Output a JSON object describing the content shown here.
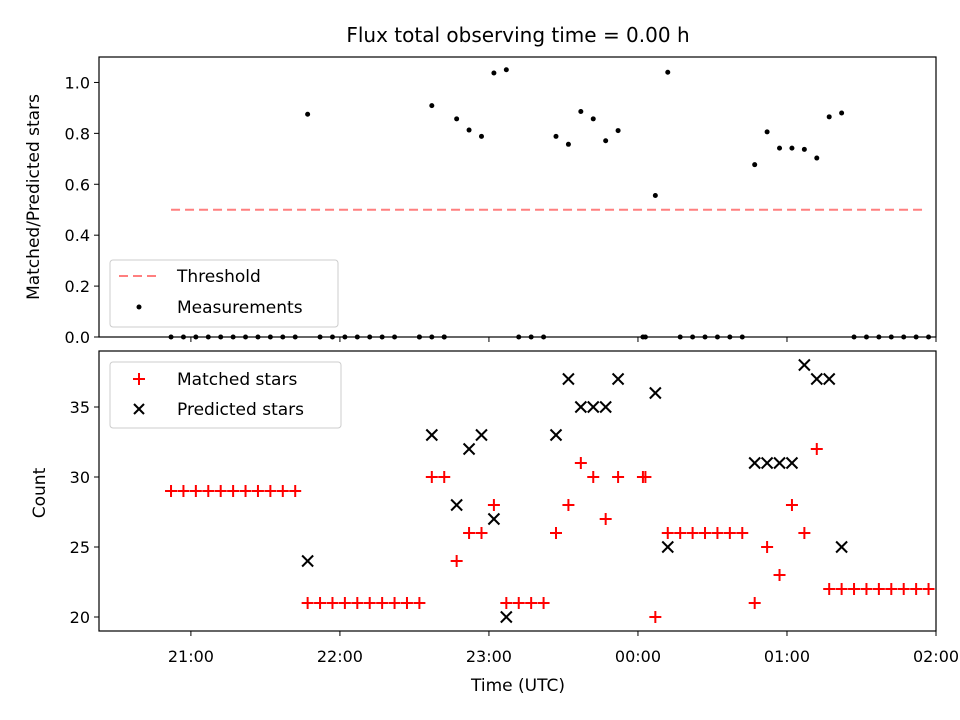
{
  "figure": {
    "title": "Flux total observing time = 0.00 h",
    "xlabel": "Time (UTC)",
    "x_ticks": [
      "21:00",
      "22:00",
      "23:00",
      "00:00",
      "01:00",
      "02:00"
    ]
  },
  "chart_data": [
    {
      "type": "scatter",
      "title": "Flux total observing time = 0.00 h",
      "xlabel": "Time (UTC)",
      "ylabel": "Matched/Predicted stars",
      "x_unit": "minutes after 21:00 UTC",
      "xlim": [
        -37,
        300
      ],
      "ylim": [
        0,
        1.1
      ],
      "y_ticks": [
        0.0,
        0.2,
        0.4,
        0.6,
        0.8,
        1.0
      ],
      "grid": false,
      "legend": {
        "position": "bottom-left",
        "entries": [
          "Threshold",
          "Measurements"
        ]
      },
      "threshold": {
        "name": "Threshold",
        "value": 0.5,
        "x_range": [
          -8,
          296
        ],
        "color": "#ff7f7f",
        "style": "dashed"
      },
      "series": [
        {
          "name": "Measurements",
          "color": "#000000",
          "marker": "dot",
          "points": [
            [
              -8,
              0
            ],
            [
              -3,
              0
            ],
            [
              2,
              0
            ],
            [
              7,
              0
            ],
            [
              12,
              0
            ],
            [
              17,
              0
            ],
            [
              22,
              0
            ],
            [
              27,
              0
            ],
            [
              32,
              0
            ],
            [
              37,
              0
            ],
            [
              42,
              0
            ],
            [
              47,
              0.875
            ],
            [
              52,
              0
            ],
            [
              57,
              0
            ],
            [
              62,
              0
            ],
            [
              67,
              0
            ],
            [
              72,
              0
            ],
            [
              77,
              0
            ],
            [
              82,
              0
            ],
            [
              92,
              0
            ],
            [
              97,
              0
            ],
            [
              102,
              0
            ],
            [
              92,
              0
            ],
            [
              97,
              0.909
            ],
            [
              102,
              0
            ],
            [
              107,
              0.857
            ],
            [
              112,
              0.813
            ],
            [
              117,
              0.788
            ],
            [
              122,
              1.037
            ],
            [
              127,
              1.05
            ],
            [
              132,
              0
            ],
            [
              137,
              0
            ],
            [
              142,
              0
            ],
            [
              147,
              0.788
            ],
            [
              152,
              0.757
            ],
            [
              157,
              0.886
            ],
            [
              162,
              0.857
            ],
            [
              167,
              0.771
            ],
            [
              172,
              0.811
            ],
            [
              182,
              0
            ],
            [
              183,
              0
            ],
            [
              187,
              0.556
            ],
            [
              192,
              1.04
            ],
            [
              197,
              0
            ],
            [
              202,
              0
            ],
            [
              207,
              0
            ],
            [
              212,
              0
            ],
            [
              217,
              0
            ],
            [
              222,
              0
            ],
            [
              227,
              0.677
            ],
            [
              232,
              0.806
            ],
            [
              237,
              0.742
            ],
            [
              242,
              0.742
            ],
            [
              247,
              0.737
            ],
            [
              252,
              0.703
            ],
            [
              257,
              0.865
            ],
            [
              262,
              0.88
            ],
            [
              267,
              0
            ],
            [
              272,
              0
            ],
            [
              277,
              0
            ],
            [
              282,
              0
            ],
            [
              287,
              0
            ],
            [
              292,
              0
            ],
            [
              297,
              0
            ]
          ]
        }
      ]
    },
    {
      "type": "scatter",
      "xlabel": "Time (UTC)",
      "ylabel": "Count",
      "x_unit": "minutes after 21:00 UTC",
      "xlim": [
        -37,
        300
      ],
      "ylim": [
        19,
        39
      ],
      "y_ticks": [
        20,
        25,
        30,
        35
      ],
      "grid": false,
      "legend": {
        "position": "top-left",
        "entries": [
          "Matched stars",
          "Predicted stars"
        ]
      },
      "series": [
        {
          "name": "Matched stars",
          "color": "#ff0000",
          "marker": "plus",
          "points": [
            [
              -8,
              29
            ],
            [
              -3,
              29
            ],
            [
              2,
              29
            ],
            [
              7,
              29
            ],
            [
              12,
              29
            ],
            [
              17,
              29
            ],
            [
              22,
              29
            ],
            [
              27,
              29
            ],
            [
              32,
              29
            ],
            [
              37,
              29
            ],
            [
              42,
              29
            ],
            [
              47,
              21
            ],
            [
              52,
              21
            ],
            [
              57,
              21
            ],
            [
              62,
              21
            ],
            [
              67,
              21
            ],
            [
              72,
              21
            ],
            [
              77,
              21
            ],
            [
              82,
              21
            ],
            [
              87,
              21
            ],
            [
              92,
              21
            ],
            [
              97,
              30
            ],
            [
              102,
              30
            ],
            [
              107,
              24
            ],
            [
              112,
              26
            ],
            [
              117,
              26
            ],
            [
              122,
              28
            ],
            [
              127,
              21
            ],
            [
              132,
              21
            ],
            [
              137,
              21
            ],
            [
              142,
              21
            ],
            [
              147,
              26
            ],
            [
              152,
              28
            ],
            [
              157,
              31
            ],
            [
              162,
              30
            ],
            [
              167,
              27
            ],
            [
              172,
              30
            ],
            [
              182,
              30
            ],
            [
              183,
              30
            ],
            [
              187,
              20
            ],
            [
              192,
              26
            ],
            [
              197,
              26
            ],
            [
              202,
              26
            ],
            [
              207,
              26
            ],
            [
              212,
              26
            ],
            [
              217,
              26
            ],
            [
              222,
              26
            ],
            [
              227,
              21
            ],
            [
              232,
              25
            ],
            [
              237,
              23
            ],
            [
              242,
              28
            ],
            [
              247,
              26
            ],
            [
              252,
              32
            ],
            [
              257,
              22
            ],
            [
              262,
              22
            ],
            [
              267,
              22
            ],
            [
              272,
              22
            ],
            [
              277,
              22
            ],
            [
              282,
              22
            ],
            [
              287,
              22
            ],
            [
              292,
              22
            ],
            [
              297,
              22
            ]
          ]
        },
        {
          "name": "Predicted stars",
          "color": "#000000",
          "marker": "x",
          "points": [
            [
              47,
              24
            ],
            [
              97,
              33
            ],
            [
              107,
              28
            ],
            [
              112,
              32
            ],
            [
              117,
              33
            ],
            [
              122,
              27
            ],
            [
              127,
              20
            ],
            [
              147,
              33
            ],
            [
              152,
              37
            ],
            [
              157,
              35
            ],
            [
              162,
              35
            ],
            [
              167,
              35
            ],
            [
              172,
              37
            ],
            [
              187,
              36
            ],
            [
              192,
              25
            ],
            [
              227,
              31
            ],
            [
              232,
              31
            ],
            [
              237,
              31
            ],
            [
              242,
              31
            ],
            [
              247,
              38
            ],
            [
              252,
              37
            ],
            [
              257,
              37
            ],
            [
              262,
              25
            ]
          ]
        }
      ]
    }
  ]
}
